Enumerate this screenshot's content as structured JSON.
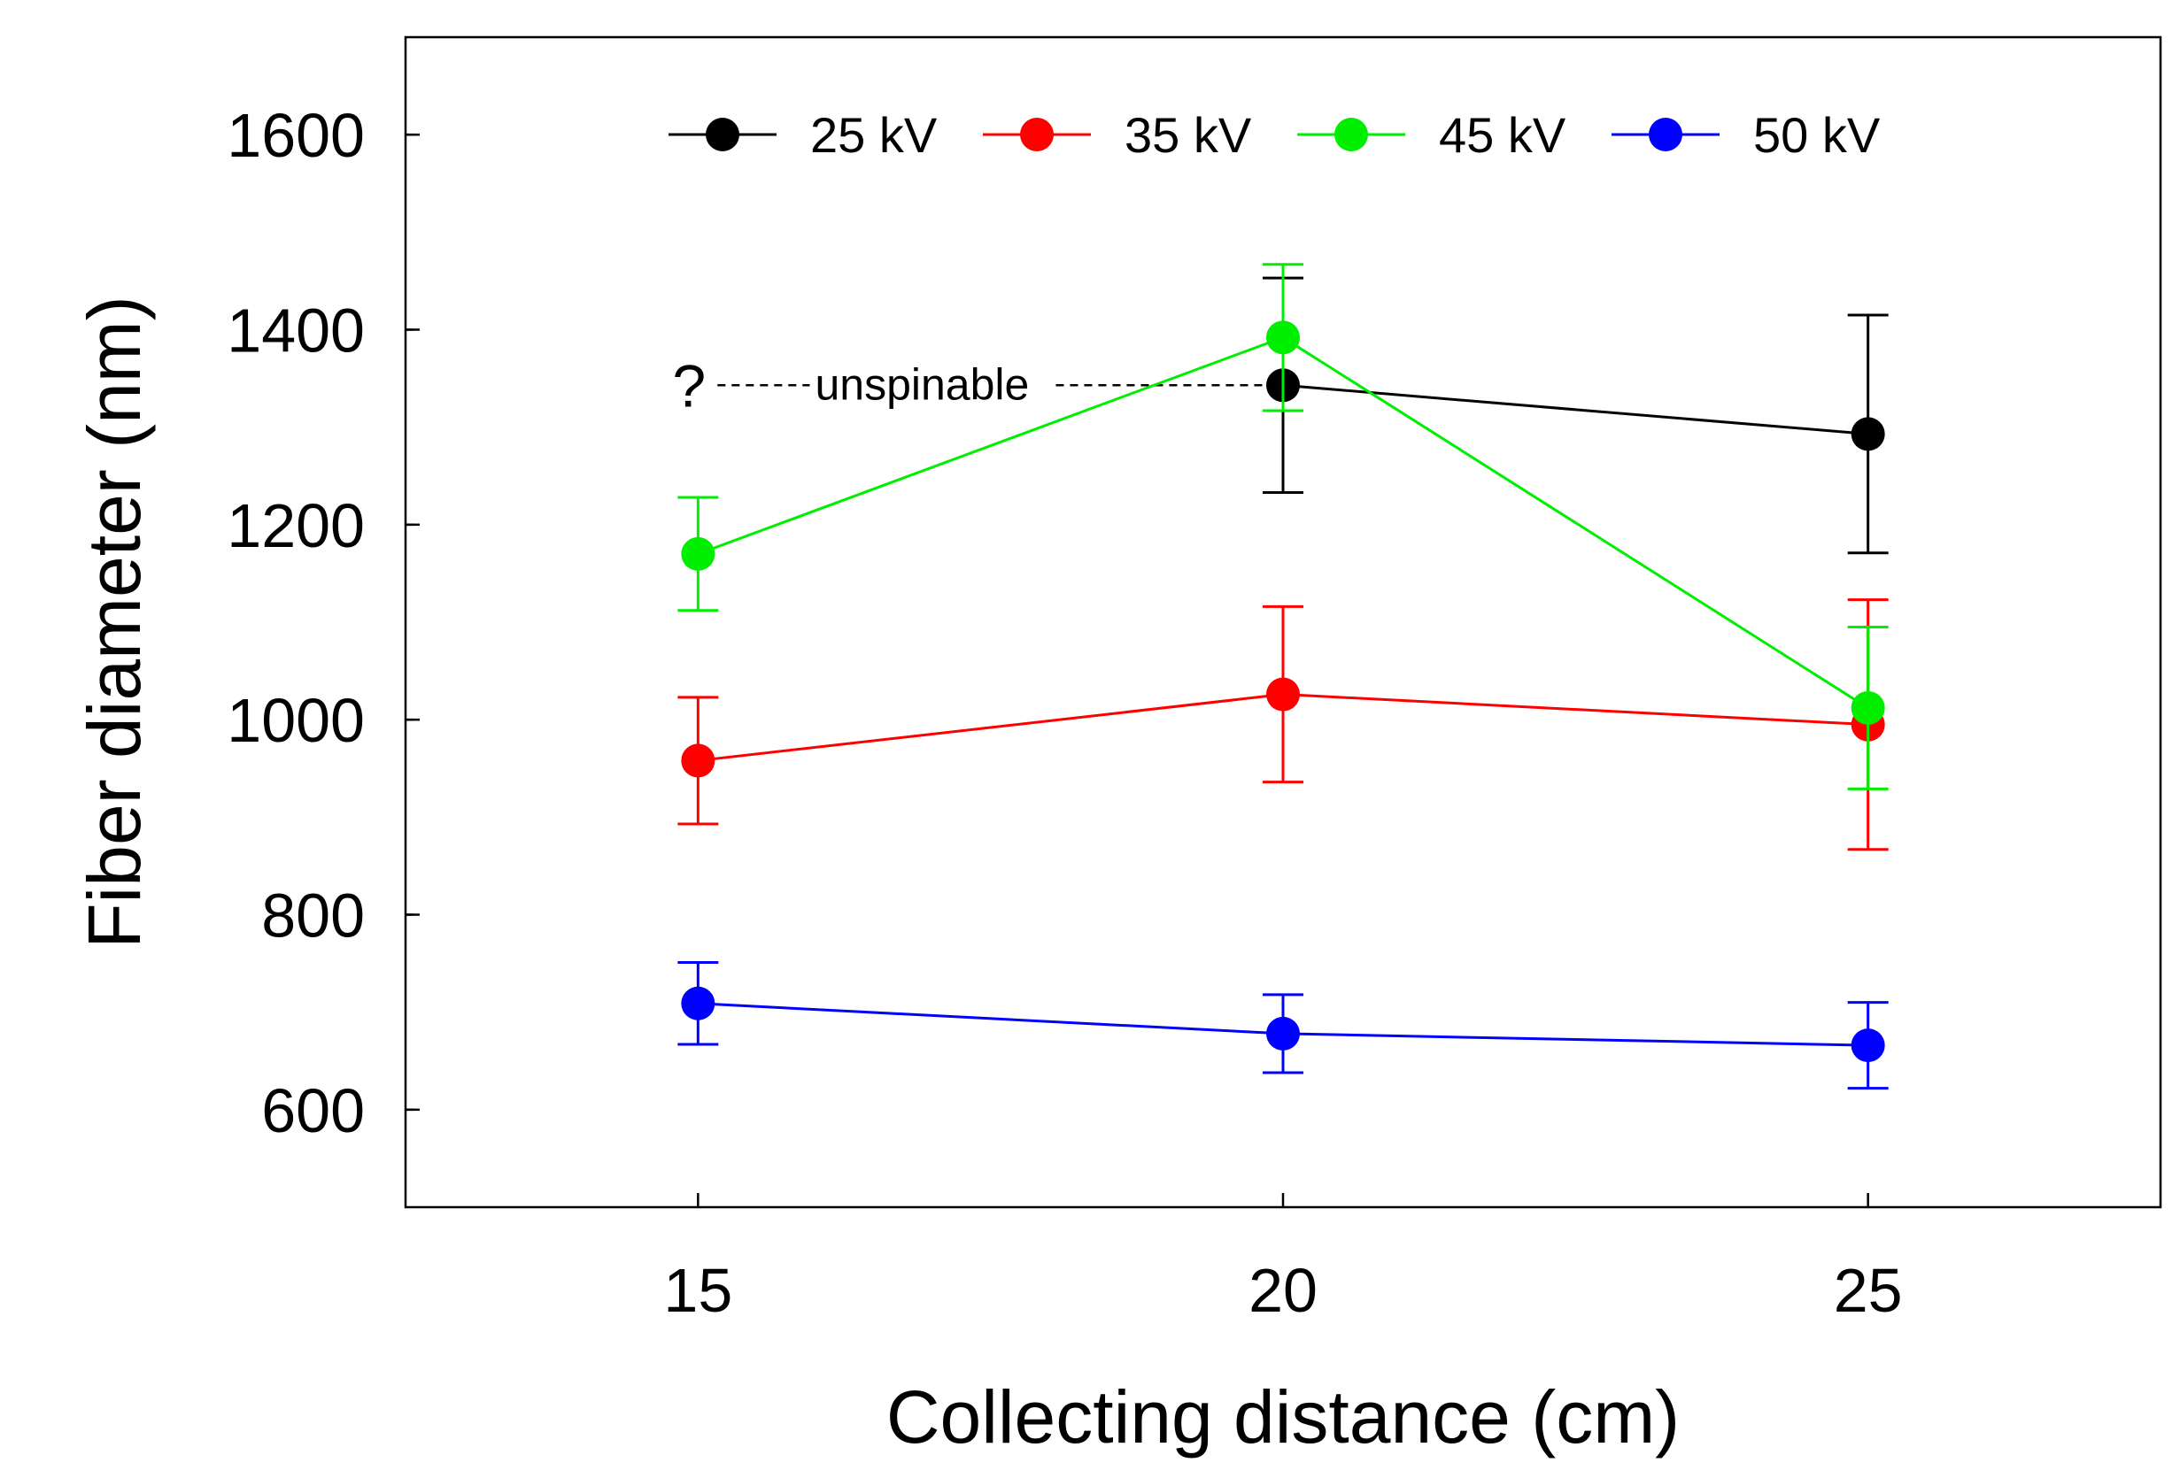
{
  "chart_data": {
    "type": "line",
    "title": "",
    "xlabel": "Collecting distance (cm)",
    "ylabel": "Fiber diameter (nm)",
    "x": [
      15,
      20,
      25
    ],
    "x_tick_labels": [
      "15",
      "20",
      "25"
    ],
    "y_tick_labels": [
      "600",
      "800",
      "1000",
      "1200",
      "1400",
      "1600"
    ],
    "xlim": [
      12.5,
      27.5
    ],
    "ylim": [
      500,
      1700
    ],
    "grid": false,
    "legend_position": "top",
    "series": [
      {
        "name": "25 kV",
        "color": "#000000",
        "x": [
          20,
          25
        ],
        "values": [
          1343,
          1293
        ],
        "errors": [
          110,
          122
        ]
      },
      {
        "name": "35 kV",
        "color": "#ff0000",
        "x": [
          15,
          20,
          25
        ],
        "values": [
          958,
          1026,
          995
        ],
        "errors": [
          65,
          90,
          128
        ]
      },
      {
        "name": "45 kV",
        "color": "#00ee00",
        "x": [
          15,
          20,
          25
        ],
        "values": [
          1170,
          1392,
          1012
        ],
        "errors": [
          58,
          75,
          83
        ]
      },
      {
        "name": "50 kV",
        "color": "#0000ff",
        "x": [
          15,
          20,
          25
        ],
        "values": [
          709,
          678,
          666
        ],
        "errors": [
          42,
          40,
          44
        ]
      }
    ],
    "annotation": {
      "symbol": "?",
      "text": "unspinable",
      "x": 15,
      "y": 1343
    }
  }
}
